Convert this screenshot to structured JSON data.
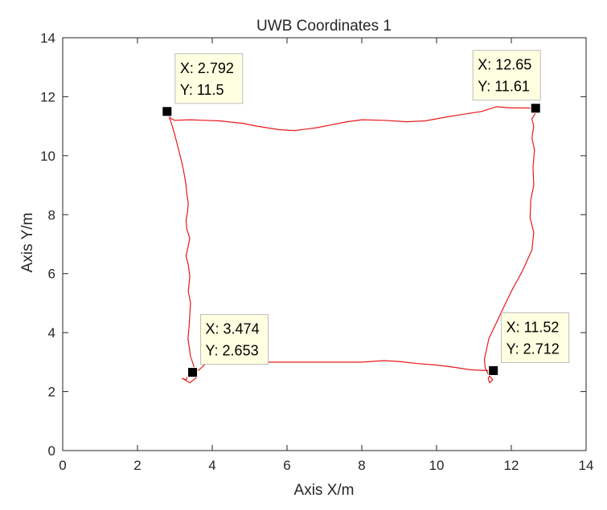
{
  "chart_data": {
    "type": "line",
    "title": "UWB Coordinates 1",
    "xlabel": "Axis X/m",
    "ylabel": "Axis Y/m",
    "xlim": [
      0,
      14
    ],
    "ylim": [
      0,
      14
    ],
    "xticks": [
      "0",
      "2",
      "4",
      "6",
      "8",
      "10",
      "12",
      "14"
    ],
    "yticks": [
      "0",
      "2",
      "4",
      "6",
      "8",
      "10",
      "12",
      "14"
    ],
    "grid": false,
    "line_color": "#e8191b",
    "marker_color": "#000000",
    "datatip_bg": "#ffffe1",
    "series": [
      {
        "x": [
          2.7,
          2.78,
          2.83,
          2.88,
          2.92,
          3.0,
          3.1,
          3.2,
          3.26,
          3.3,
          3.32,
          3.36,
          3.34,
          3.3,
          3.32,
          3.4,
          3.35,
          3.3,
          3.36,
          3.4,
          3.36,
          3.42,
          3.4,
          3.38,
          3.35,
          3.42,
          3.6,
          3.4,
          3.2,
          3.3,
          3.36,
          3.45,
          3.47,
          3.53,
          3.66,
          3.8,
          3.9,
          4.2,
          5.0,
          6.0,
          7.0,
          8.0,
          8.6,
          9.0,
          9.5,
          10.0,
          10.5,
          10.9,
          11.2,
          11.42,
          11.52,
          11.46,
          11.38,
          11.42,
          11.5,
          11.4,
          11.3,
          11.28,
          11.4,
          11.7,
          12.0,
          12.3,
          12.55,
          12.6,
          12.5,
          12.52,
          12.6,
          12.58,
          12.62,
          12.55,
          12.6,
          12.55,
          12.65,
          12.72,
          12.67,
          12.65,
          12.4,
          12.0,
          11.6,
          11.2,
          10.8,
          10.3,
          9.7,
          9.2,
          8.6,
          8.0,
          7.6,
          7.2,
          6.8,
          6.2,
          5.8,
          5.2,
          4.8,
          4.2,
          3.8,
          3.4,
          3.0,
          2.92,
          2.86,
          2.8,
          2.75
        ],
        "y": [
          11.55,
          11.48,
          11.4,
          11.2,
          11.05,
          10.7,
          10.2,
          9.7,
          9.3,
          9.0,
          8.7,
          8.4,
          8.1,
          7.8,
          7.5,
          7.2,
          6.9,
          6.6,
          6.3,
          5.9,
          5.4,
          5.0,
          4.6,
          4.2,
          3.8,
          3.2,
          2.5,
          2.3,
          2.45,
          2.4,
          2.55,
          2.62,
          2.64,
          2.66,
          2.75,
          2.92,
          3.0,
          3.0,
          3.0,
          3.0,
          3.0,
          3.0,
          3.05,
          3.02,
          2.95,
          2.9,
          2.82,
          2.74,
          2.72,
          2.71,
          2.7,
          2.6,
          2.45,
          2.3,
          2.4,
          2.55,
          2.8,
          3.1,
          3.8,
          4.6,
          5.4,
          6.1,
          6.8,
          7.4,
          7.9,
          8.5,
          9.0,
          9.6,
          10.2,
          10.6,
          11.0,
          11.25,
          11.45,
          11.58,
          11.62,
          11.6,
          11.62,
          11.62,
          11.66,
          11.5,
          11.42,
          11.32,
          11.18,
          11.15,
          11.2,
          11.22,
          11.15,
          11.05,
          10.95,
          10.85,
          10.88,
          11.0,
          11.1,
          11.18,
          11.2,
          11.22,
          11.2,
          11.24,
          11.3,
          11.4,
          11.5
        ]
      }
    ],
    "datatips": [
      {
        "x": 2.792,
        "y": 11.5,
        "label_x": "X: 2.792",
        "label_y": "Y: 11.5",
        "box_corner": "top-right"
      },
      {
        "x": 12.65,
        "y": 11.61,
        "label_x": "X: 12.65",
        "label_y": "Y: 11.61",
        "box_corner": "top-left"
      },
      {
        "x": 3.474,
        "y": 2.653,
        "label_x": "X: 3.474",
        "label_y": "Y: 2.653",
        "box_corner": "top-right"
      },
      {
        "x": 11.52,
        "y": 2.712,
        "label_x": "X: 11.52",
        "label_y": "Y: 2.712",
        "box_corner": "top-right"
      }
    ]
  }
}
